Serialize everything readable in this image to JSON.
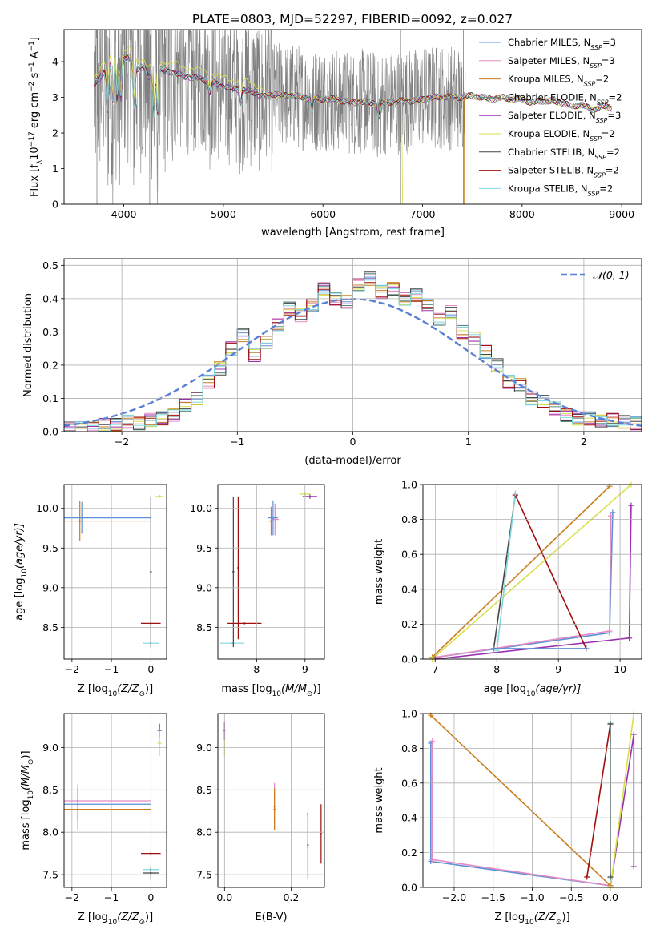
{
  "figure_title": "PLATE=0803, MJD=52297, FIBERID=0092, z=0.027",
  "colors": {
    "data": "#808080",
    "chabrier_miles": "#5b8fd9",
    "salpeter_miles": "#e58ac2",
    "kroupa_miles": "#c97d1c",
    "chabrier_elodie": "#5c8a7a",
    "salpeter_elodie": "#9b30b0",
    "kroupa_elodie": "#d8e04a",
    "chabrier_stelib": "#444444",
    "salpeter_stelib": "#a00e0e",
    "kroupa_stelib": "#7fd8e0",
    "normal": "#5b7fd6",
    "grid": "#b0b0b0"
  },
  "chart_data": [
    {
      "id": "spectrum",
      "type": "line",
      "title": "",
      "xlabel": "wavelength [Angstrom, rest frame]",
      "ylabel_main": "Flux [f",
      "ylabel_sub": "λ",
      "ylabel_tail": "10",
      "ylabel_exp1": "−17",
      "ylabel_mid": " erg cm",
      "ylabel_exp2": "−2",
      "ylabel_mid2": " s",
      "ylabel_exp3": "−1",
      "ylabel_end": " A",
      "ylabel_exp4": "−1",
      "ylabel_close": "]",
      "xlim": [
        3400,
        9200
      ],
      "ylim": [
        0,
        4.9
      ],
      "xticks": [
        4000,
        5000,
        6000,
        7000,
        8000,
        9000
      ],
      "yticks": [
        0,
        1,
        2,
        3,
        4
      ],
      "grid": false,
      "legend_position": "top-right",
      "legend": [
        {
          "pre": "Chabrier MILES, N",
          "sub": "SSP",
          "post": "=3",
          "color_key": "chabrier_miles"
        },
        {
          "pre": "Salpeter MILES, N",
          "sub": "SSP",
          "post": "=3",
          "color_key": "salpeter_miles"
        },
        {
          "pre": "Kroupa MILES, N",
          "sub": "SSP",
          "post": "=2",
          "color_key": "kroupa_miles"
        },
        {
          "pre": "Chabrier ELODIE, N",
          "sub": "SSP",
          "post": "=2",
          "color_key": "chabrier_elodie"
        },
        {
          "pre": "Salpeter ELODIE, N",
          "sub": "SSP",
          "post": "=3",
          "color_key": "salpeter_elodie"
        },
        {
          "pre": "Kroupa ELODIE, N",
          "sub": "SSP",
          "post": "=2",
          "color_key": "kroupa_elodie"
        },
        {
          "pre": "Chabrier STELIB, N",
          "sub": "SSP",
          "post": "=2",
          "color_key": "chabrier_stelib"
        },
        {
          "pre": "Salpeter STELIB, N",
          "sub": "SSP",
          "post": "=2",
          "color_key": "salpeter_stelib"
        },
        {
          "pre": "Kroupa STELIB, N",
          "sub": "SSP",
          "post": "=2",
          "color_key": "kroupa_stelib"
        }
      ],
      "model_continuum": {
        "x": [
          3700,
          3750,
          3800,
          3850,
          3900,
          3950,
          4000,
          4050,
          4100,
          4150,
          4200,
          4250,
          4300,
          4350,
          4400,
          4500,
          4600,
          4700,
          4800,
          4850,
          4900,
          5000,
          5100,
          5200,
          5300,
          5400,
          5500,
          5600,
          5700,
          5800,
          5900,
          6000,
          6100,
          6200,
          6300,
          6400,
          6500,
          6563,
          6600,
          6700,
          6800,
          6900,
          7000,
          7100,
          7200,
          7300,
          7400,
          7500,
          7600,
          7700,
          7800,
          7900,
          8000,
          8100,
          8200,
          8300,
          8400,
          8500,
          8600,
          8700,
          8800,
          8900
        ],
        "y": [
          3.35,
          3.5,
          3.7,
          3.9,
          4.1,
          4.2,
          4.05,
          4.1,
          3.9,
          3.8,
          3.85,
          3.55,
          3.7,
          3.8,
          3.75,
          3.7,
          3.6,
          3.55,
          3.5,
          3.45,
          3.4,
          3.3,
          3.25,
          3.2,
          3.15,
          3.0,
          3.1,
          3.05,
          3.05,
          3.0,
          2.95,
          2.95,
          2.95,
          2.9,
          2.85,
          2.88,
          2.85,
          2.8,
          2.85,
          2.88,
          2.9,
          2.9,
          2.95,
          3.0,
          3.02,
          3.0,
          3.0,
          3.05,
          3.0,
          2.95,
          3.0,
          2.95,
          2.95,
          2.85,
          2.9,
          2.9,
          2.85,
          2.75,
          2.8,
          2.65,
          2.75,
          2.7
        ]
      },
      "absorption_lines": [
        3835,
        3889,
        3934,
        3969,
        4102,
        4300,
        4340,
        4861,
        5175,
        5890,
        6563
      ],
      "noise_range": [
        3700,
        7430
      ]
    },
    {
      "id": "residuals",
      "type": "histogram",
      "xlabel": "(data-model)/error",
      "ylabel": "Normed distribution",
      "xlim": [
        -2.5,
        2.5
      ],
      "ylim": [
        0,
        0.52
      ],
      "xticks": [
        -2,
        -1,
        0,
        1,
        2
      ],
      "yticks": [
        0.0,
        0.1,
        0.2,
        0.3,
        0.4,
        0.5
      ],
      "grid": true,
      "legend_position": "top-right",
      "legend_label": "𝒩(0, 1)",
      "bin_edges": [
        -2.5,
        -2.4,
        -2.3,
        -2.2,
        -2.1,
        -2.0,
        -1.9,
        -1.8,
        -1.7,
        -1.6,
        -1.5,
        -1.4,
        -1.3,
        -1.2,
        -1.1,
        -1.0,
        -0.9,
        -0.8,
        -0.7,
        -0.6,
        -0.5,
        -0.4,
        -0.3,
        -0.2,
        -0.1,
        0.0,
        0.1,
        0.2,
        0.3,
        0.4,
        0.5,
        0.6,
        0.7,
        0.8,
        0.9,
        1.0,
        1.1,
        1.2,
        1.3,
        1.4,
        1.5,
        1.6,
        1.7,
        1.8,
        1.9,
        2.0,
        2.1,
        2.2,
        2.3,
        2.4,
        2.5
      ],
      "hist_values": [
        0.01,
        0.01,
        0.015,
        0.02,
        0.02,
        0.03,
        0.025,
        0.035,
        0.04,
        0.05,
        0.08,
        0.1,
        0.15,
        0.19,
        0.25,
        0.29,
        0.23,
        0.27,
        0.32,
        0.37,
        0.35,
        0.38,
        0.43,
        0.4,
        0.39,
        0.44,
        0.46,
        0.42,
        0.43,
        0.4,
        0.41,
        0.38,
        0.34,
        0.36,
        0.3,
        0.28,
        0.24,
        0.2,
        0.15,
        0.14,
        0.1,
        0.09,
        0.07,
        0.05,
        0.04,
        0.04,
        0.03,
        0.035,
        0.03,
        0.025
      ],
      "normal": {
        "mu": 0,
        "sigma": 1
      }
    },
    {
      "id": "age_vs_Z",
      "type": "errorbar",
      "xlabel_pre": "Z [log",
      "xlabel_sub": "10",
      "xlabel_post": "(Z/Z",
      "xlabel_sun": "⊙",
      "xlabel_end": ")]",
      "ylabel_pre": "age  [log",
      "ylabel_sub": "10",
      "ylabel_post": "(age/yr)]",
      "xlim": [
        -2.2,
        0.4
      ],
      "ylim": [
        8.1,
        10.3
      ],
      "xticks": [
        -2,
        -1,
        0
      ],
      "yticks": [
        8.5,
        9.0,
        9.5,
        10.0
      ],
      "grid": true,
      "points": [
        {
          "x": -1.8,
          "y": 9.84,
          "xerr": 1.8,
          "yerr": 0.25,
          "color_key": "kroupa_miles"
        },
        {
          "x": -1.75,
          "y": 9.88,
          "xerr": 1.75,
          "yerr": 0.2,
          "color_key": "chabrier_miles"
        },
        {
          "x": 0.0,
          "y": 8.55,
          "xerr": 0.25,
          "yerr": 0.0,
          "color_key": "salpeter_stelib"
        },
        {
          "x": 0.0,
          "y": 8.3,
          "xerr": 0.2,
          "yerr": 0.0,
          "color_key": "kroupa_stelib"
        },
        {
          "x": 0.0,
          "y": 9.2,
          "xerr": 0.0,
          "yerr": 0.95,
          "color_key": "chabrier_stelib"
        },
        {
          "x": 0.22,
          "y": 10.15,
          "xerr": 0.1,
          "yerr": 0.02,
          "color_key": "kroupa_elodie"
        }
      ]
    },
    {
      "id": "age_vs_mass",
      "type": "errorbar",
      "xlabel_pre": "mass [log",
      "xlabel_sub": "10",
      "xlabel_post": "(M/M",
      "xlabel_sun": "⊙",
      "xlabel_end": ")]",
      "xlim": [
        7.2,
        9.4
      ],
      "ylim": [
        8.1,
        10.3
      ],
      "xticks": [
        8,
        9
      ],
      "yticks": [
        8.5,
        9.0,
        9.5,
        10.0
      ],
      "grid": true,
      "points": [
        {
          "x": 8.3,
          "y": 9.84,
          "xerr": 0.05,
          "yerr": 0.18,
          "color_key": "kroupa_miles"
        },
        {
          "x": 8.38,
          "y": 9.86,
          "xerr": 0.08,
          "yerr": 0.2,
          "color_key": "salpeter_miles"
        },
        {
          "x": 8.34,
          "y": 9.88,
          "xerr": 0.1,
          "yerr": 0.22,
          "color_key": "chabrier_miles"
        },
        {
          "x": 7.75,
          "y": 8.55,
          "xerr": 0.35,
          "yerr": 0.0,
          "color_key": "salpeter_stelib"
        },
        {
          "x": 7.5,
          "y": 8.3,
          "xerr": 0.25,
          "yerr": 0.0,
          "color_key": "kroupa_stelib"
        },
        {
          "x": 7.62,
          "y": 9.25,
          "xerr": 0.0,
          "yerr": 0.9,
          "color_key": "salpeter_stelib"
        },
        {
          "x": 7.52,
          "y": 9.2,
          "xerr": 0.0,
          "yerr": 0.95,
          "color_key": "chabrier_stelib"
        },
        {
          "x": 9.1,
          "y": 10.15,
          "xerr": 0.15,
          "yerr": 0.03,
          "color_key": "salpeter_elodie"
        },
        {
          "x": 9.0,
          "y": 10.18,
          "xerr": 0.12,
          "yerr": 0.03,
          "color_key": "kroupa_elodie"
        }
      ]
    },
    {
      "id": "weight_vs_age",
      "type": "line",
      "xlabel_pre": "age  [log",
      "xlabel_sub": "10",
      "xlabel_post": "(age/yr)]",
      "ylabel": "mass weight",
      "xlim": [
        6.8,
        10.35
      ],
      "ylim": [
        0,
        1
      ],
      "xticks": [
        7,
        8,
        9,
        10
      ],
      "yticks": [
        0.0,
        0.2,
        0.4,
        0.6,
        0.8,
        1.0
      ],
      "grid": true,
      "series": [
        {
          "color_key": "chabrier_miles",
          "x": [
            7.0,
            9.83,
            9.88
          ],
          "y": [
            0.01,
            0.15,
            0.84
          ]
        },
        {
          "color_key": "salpeter_miles",
          "x": [
            7.0,
            9.83,
            9.85
          ],
          "y": [
            0.01,
            0.16,
            0.82
          ]
        },
        {
          "color_key": "kroupa_miles",
          "x": [
            6.95,
            9.83
          ],
          "y": [
            0.01,
            0.99
          ]
        },
        {
          "color_key": "salpeter_elodie",
          "x": [
            7.0,
            10.15,
            10.18
          ],
          "y": [
            0.0,
            0.12,
            0.88
          ]
        },
        {
          "color_key": "kroupa_elodie",
          "x": [
            6.95,
            10.18
          ],
          "y": [
            0.0,
            1.0
          ]
        },
        {
          "color_key": "chabrier_stelib",
          "x": [
            7.95,
            8.3
          ],
          "y": [
            0.06,
            0.94
          ]
        },
        {
          "color_key": "salpeter_stelib",
          "x": [
            8.3,
            9.45
          ],
          "y": [
            0.94,
            0.06
          ]
        },
        {
          "color_key": "kroupa_stelib",
          "x": [
            8.0,
            8.3
          ],
          "y": [
            0.05,
            0.95
          ]
        },
        {
          "color_key": "chabrier_miles",
          "x": [
            7.95,
            9.45
          ],
          "y": [
            0.06,
            0.06
          ]
        }
      ]
    },
    {
      "id": "mass_vs_Z",
      "type": "errorbar",
      "xlabel_pre": "Z [log",
      "xlabel_sub": "10",
      "xlabel_post": "(Z/Z",
      "xlabel_sun": "⊙",
      "xlabel_end": ")]",
      "ylabel_pre": "mass [log",
      "ylabel_sub": "10",
      "ylabel_post": "(M/M",
      "ylabel_sun": "⊙",
      "ylabel_end": ")]",
      "xlim": [
        -2.2,
        0.4
      ],
      "ylim": [
        7.35,
        9.4
      ],
      "xticks": [
        -2,
        -1,
        0
      ],
      "yticks": [
        7.5,
        8.0,
        8.5,
        9.0
      ],
      "grid": true,
      "points": [
        {
          "x": -1.85,
          "y": 8.37,
          "xerr": 1.85,
          "yerr": 0.2,
          "color_key": "salpeter_miles"
        },
        {
          "x": -1.85,
          "y": 8.33,
          "xerr": 1.85,
          "yerr": 0.2,
          "color_key": "chabrier_miles"
        },
        {
          "x": -1.85,
          "y": 8.27,
          "xerr": 1.85,
          "yerr": 0.25,
          "color_key": "kroupa_miles"
        },
        {
          "x": 0.0,
          "y": 7.75,
          "xerr": 0.25,
          "yerr": 0.0,
          "color_key": "salpeter_stelib"
        },
        {
          "x": 0.0,
          "y": 7.56,
          "xerr": 0.2,
          "yerr": 0.0,
          "color_key": "kroupa_stelib"
        },
        {
          "x": 0.0,
          "y": 7.52,
          "xerr": 0.2,
          "yerr": 0.08,
          "color_key": "chabrier_stelib"
        },
        {
          "x": 0.22,
          "y": 9.2,
          "xerr": 0.05,
          "yerr": 0.08,
          "color_key": "salpeter_elodie"
        },
        {
          "x": 0.22,
          "y": 9.05,
          "xerr": 0.05,
          "yerr": 0.15,
          "color_key": "kroupa_elodie"
        }
      ]
    },
    {
      "id": "mass_vs_ebv",
      "type": "errorbar",
      "xlabel": "E(B-V)",
      "xlim": [
        -0.02,
        0.3
      ],
      "ylim": [
        7.35,
        9.4
      ],
      "xticks": [
        0.0,
        0.2
      ],
      "yticks": [
        7.5,
        8.0,
        8.5,
        9.0
      ],
      "grid": true,
      "points": [
        {
          "x": 0.0,
          "y": 9.1,
          "xerr": 0.0,
          "yerr": 0.2,
          "color_key": "kroupa_elodie"
        },
        {
          "x": 0.0,
          "y": 9.2,
          "xerr": 0.0,
          "yerr": 0.1,
          "color_key": "salpeter_elodie"
        },
        {
          "x": 0.15,
          "y": 8.3,
          "xerr": 0.0,
          "yerr": 0.28,
          "color_key": "salpeter_miles"
        },
        {
          "x": 0.15,
          "y": 8.27,
          "xerr": 0.0,
          "yerr": 0.25,
          "color_key": "kroupa_miles"
        },
        {
          "x": 0.25,
          "y": 7.85,
          "xerr": 0.0,
          "yerr": 0.38,
          "color_key": "chabrier_stelib"
        },
        {
          "x": 0.25,
          "y": 7.82,
          "xerr": 0.0,
          "yerr": 0.38,
          "color_key": "kroupa_stelib"
        },
        {
          "x": 0.29,
          "y": 7.98,
          "xerr": 0.0,
          "yerr": 0.35,
          "color_key": "salpeter_stelib"
        }
      ]
    },
    {
      "id": "weight_vs_Z",
      "type": "line",
      "xlabel_pre": "Z [log",
      "xlabel_sub": "10",
      "xlabel_post": "(Z/Z",
      "xlabel_sun": "⊙",
      "xlabel_end": ")]",
      "ylabel": "mass weight",
      "xlim": [
        -2.4,
        0.4
      ],
      "ylim": [
        0,
        1
      ],
      "xticks": [
        -2.0,
        -1.5,
        -1.0,
        -0.5,
        0.0
      ],
      "xticklabels": [
        "−2.0",
        "−1.5",
        "−1.0",
        "−0.5",
        "0.0"
      ],
      "yticks": [
        0.0,
        0.2,
        0.4,
        0.6,
        0.8,
        1.0
      ],
      "grid": true,
      "series": [
        {
          "color_key": "chabrier_miles",
          "x": [
            -2.3,
            -2.3,
            0.0
          ],
          "y": [
            0.83,
            0.15,
            0.01
          ]
        },
        {
          "color_key": "salpeter_miles",
          "x": [
            -2.28,
            -2.28,
            0.0
          ],
          "y": [
            0.84,
            0.16,
            0.01
          ]
        },
        {
          "color_key": "kroupa_miles",
          "x": [
            -2.3,
            0.0
          ],
          "y": [
            0.99,
            0.01
          ]
        },
        {
          "color_key": "salpeter_stelib",
          "x": [
            -0.3,
            0.0
          ],
          "y": [
            0.06,
            0.94
          ]
        },
        {
          "color_key": "kroupa_stelib",
          "x": [
            0.0,
            0.0
          ],
          "y": [
            0.05,
            0.95
          ]
        },
        {
          "color_key": "chabrier_stelib",
          "x": [
            0.0,
            0.0
          ],
          "y": [
            0.06,
            0.94
          ]
        },
        {
          "color_key": "salpeter_elodie",
          "x": [
            0.0,
            0.3,
            0.3
          ],
          "y": [
            0.0,
            0.88,
            0.12
          ]
        },
        {
          "color_key": "kroupa_elodie",
          "x": [
            0.0,
            0.3
          ],
          "y": [
            0.0,
            1.0
          ]
        }
      ]
    }
  ]
}
